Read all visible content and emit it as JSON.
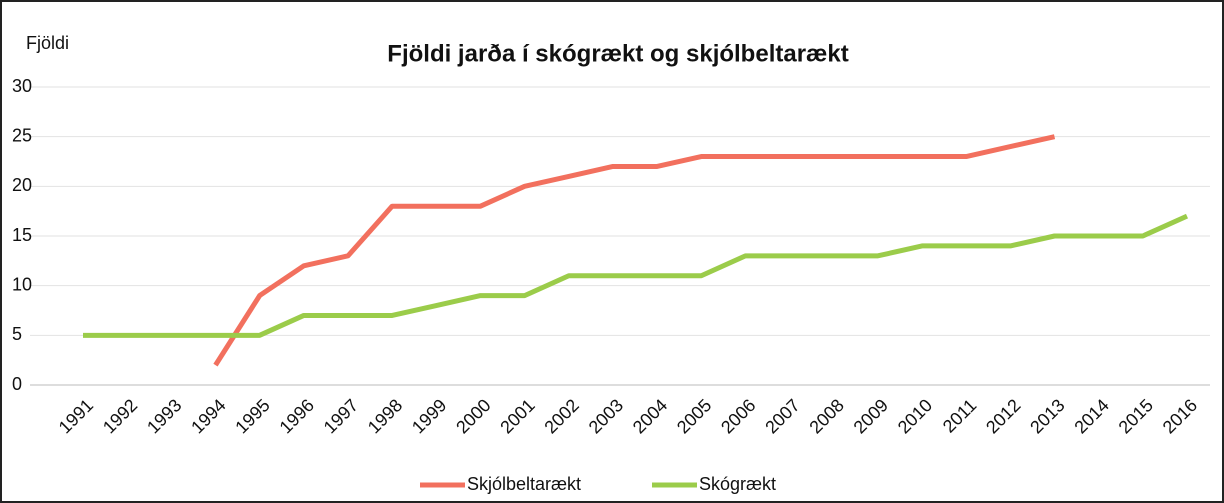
{
  "chart_data": {
    "type": "line",
    "title": "Fjöldi jarða í skógrækt og skjólbeltarækt",
    "y_label": "Fjöldi",
    "categories": [
      "1991",
      "1992",
      "1993",
      "1994",
      "1995",
      "1996",
      "1997",
      "1998",
      "1999",
      "2000",
      "2001",
      "2002",
      "2003",
      "2004",
      "2005",
      "2006",
      "2007",
      "2008",
      "2009",
      "2010",
      "2011",
      "2012",
      "2013",
      "2014",
      "2015",
      "2016"
    ],
    "series": [
      {
        "name": "Skjólbeltarækt",
        "color": "#f2705e",
        "values": [
          null,
          null,
          null,
          2,
          9,
          12,
          13,
          18,
          18,
          18,
          20,
          21,
          22,
          22,
          23,
          23,
          23,
          23,
          23,
          23,
          23,
          24,
          25,
          null,
          null,
          null
        ]
      },
      {
        "name": "Skógrækt",
        "color": "#9bcc4a",
        "values": [
          5,
          5,
          5,
          5,
          5,
          7,
          7,
          7,
          8,
          9,
          9,
          11,
          11,
          11,
          11,
          13,
          13,
          13,
          13,
          14,
          14,
          14,
          15,
          15,
          15,
          17
        ]
      }
    ],
    "ylim": [
      0,
      30
    ],
    "yticks": [
      0,
      5,
      10,
      15,
      20,
      25,
      30
    ],
    "grid": true,
    "legend": "bottom"
  }
}
